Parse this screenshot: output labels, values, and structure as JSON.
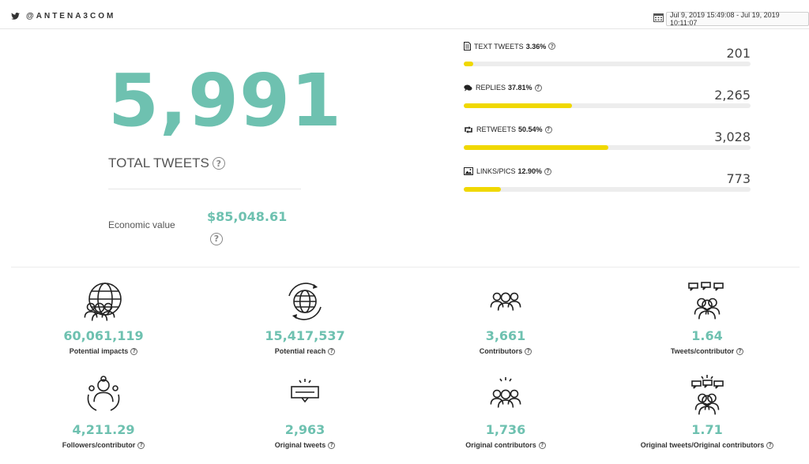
{
  "header": {
    "handle": "@ANTENA3COM",
    "date_range": "Jul 9, 2019 15:49:08 - Jul 19, 2019 10:11:07"
  },
  "summary": {
    "total_tweets": "5,991",
    "total_label": "TOTAL TWEETS",
    "economic_label": "Economic value",
    "economic_value": "$85,048.61"
  },
  "tweet_types": [
    {
      "label": "TEXT TWEETS",
      "pct": "3.36%",
      "count": "201",
      "fraction": 0.0336,
      "icon": "document-icon"
    },
    {
      "label": "REPLIES",
      "pct": "37.81%",
      "count": "2,265",
      "fraction": 0.3781,
      "icon": "speech-bubble-icon"
    },
    {
      "label": "RETWEETS",
      "pct": "50.54%",
      "count": "3,028",
      "fraction": 0.5054,
      "icon": "retweet-icon"
    },
    {
      "label": "LINKS/PICS",
      "pct": "12.90%",
      "count": "773",
      "fraction": 0.129,
      "icon": "image-icon"
    }
  ],
  "metrics": [
    {
      "value": "60,061,119",
      "label": "Potential impacts",
      "icon": "globe-people-icon"
    },
    {
      "value": "15,417,537",
      "label": "Potential reach",
      "icon": "globe-refresh-icon"
    },
    {
      "value": "3,661",
      "label": "Contributors",
      "icon": "group-icon"
    },
    {
      "value": "1.64",
      "label": "Tweets/contributor",
      "icon": "people-chat-icon"
    },
    {
      "value": "4,211.29",
      "label": "Followers/contributor",
      "icon": "network-icon"
    },
    {
      "value": "2,963",
      "label": "Original tweets",
      "icon": "message-spark-icon"
    },
    {
      "value": "1,736",
      "label": "Original contributors",
      "icon": "group-spark-icon"
    },
    {
      "value": "1.71",
      "label": "Original tweets/Original contributors",
      "icon": "people-chat-spark-icon"
    }
  ],
  "colors": {
    "accent": "#6ec1b0",
    "bar": "#f0d800",
    "track": "#ededed"
  }
}
